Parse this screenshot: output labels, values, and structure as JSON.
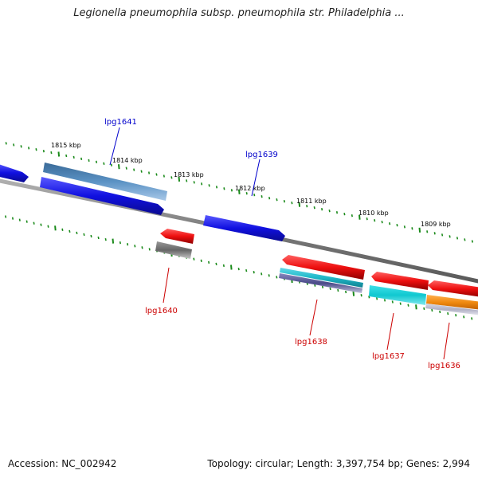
{
  "title": "Legionella pneumophila subsp. pneumophila str. Philadelphia ...",
  "footer": {
    "accession": "Accession: NC_002942",
    "summary": "Topology: circular; Length: 3,397,754 bp; Genes: 2,994"
  },
  "colors": {
    "backbone": "#888888",
    "tick": "#1a8a1a",
    "forward_label": "#0000cc",
    "reverse_label": "#cc0000"
  },
  "scale": {
    "unit": "kbp",
    "labels": [
      "1815 kbp",
      "1814 kbp",
      "1813 kbp",
      "1812 kbp",
      "1811 kbp",
      "1810 kbp",
      "1809 kbp"
    ]
  },
  "gene_labels": [
    {
      "text": "lpg1641",
      "strand": "forward"
    },
    {
      "text": "lpg1639",
      "strand": "forward"
    },
    {
      "text": "lpg1640",
      "strand": "reverse"
    },
    {
      "text": "lpg1638",
      "strand": "reverse"
    },
    {
      "text": "lpg1637",
      "strand": "reverse"
    },
    {
      "text": "lpg1636",
      "strand": "reverse"
    }
  ],
  "features": [
    {
      "id": "fwd-left-blue",
      "color": "#1010e0",
      "strand": "forward"
    },
    {
      "id": "lpg1641-steel",
      "color": "#4f86b8",
      "strand": "forward"
    },
    {
      "id": "lpg1641-blue",
      "color": "#1010e0",
      "strand": "forward"
    },
    {
      "id": "lpg1639-blue",
      "color": "#1010e0",
      "strand": "forward"
    },
    {
      "id": "lpg1640-red",
      "color": "#ee1010",
      "strand": "reverse"
    },
    {
      "id": "lpg1640-gray",
      "color": "#666666",
      "strand": "reverse"
    },
    {
      "id": "lpg1638-red",
      "color": "#ee1010",
      "strand": "reverse"
    },
    {
      "id": "lpg1638-teal",
      "color": "#20b8c8",
      "strand": "reverse"
    },
    {
      "id": "lpg1638-purple",
      "color": "#5a5a9a",
      "strand": "reverse"
    },
    {
      "id": "lpg1637-red",
      "color": "#ee1010",
      "strand": "reverse"
    },
    {
      "id": "lpg1637-cyan",
      "color": "#10c8d0",
      "strand": "reverse"
    },
    {
      "id": "lpg1636-red",
      "color": "#ee1010",
      "strand": "reverse"
    },
    {
      "id": "lpg1636-orange",
      "color": "#f08a10",
      "strand": "reverse"
    },
    {
      "id": "lpg1636-silver",
      "color": "#b8b8c8",
      "strand": "reverse"
    }
  ]
}
